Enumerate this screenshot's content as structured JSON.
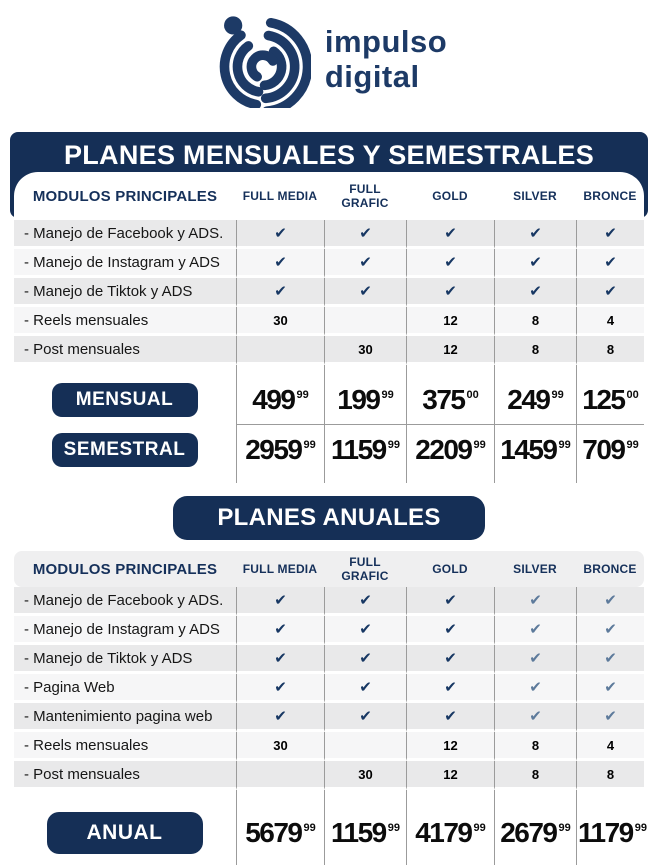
{
  "colors": {
    "navy": "#152f56",
    "check_dark": "#173763",
    "check_muted": "#5d7a9b",
    "grid_line": "#9b9b9b",
    "row_stripe": "#e9e9ea",
    "header_bar": "#efeff0"
  },
  "logo": {
    "name_line1": "impulso",
    "name_line2": "digital"
  },
  "monthly_table": {
    "title": "PLANES MENSUALES Y SEMESTRALES",
    "columns": [
      "MODULOS PRINCIPALES",
      "FULL MEDIA",
      "FULL GRAFIC",
      "GOLD",
      "SILVER",
      "BRONCE"
    ],
    "rows": [
      {
        "label": "- Manejo de Facebook y ADS.",
        "cells": [
          "✓",
          "✓",
          "✓",
          "✓",
          "✓"
        ]
      },
      {
        "label": "- Manejo de Instagram y ADS",
        "cells": [
          "✓",
          "✓",
          "✓",
          "✓",
          "✓"
        ]
      },
      {
        "label": "- Manejo de Tiktok y ADS",
        "cells": [
          "✓",
          "✓",
          "✓",
          "✓",
          "✓"
        ]
      },
      {
        "label": "- Reels mensuales",
        "cells": [
          "30",
          "",
          "12",
          "8",
          "4"
        ]
      },
      {
        "label": "- Post mensuales",
        "cells": [
          "",
          "30",
          "12",
          "8",
          "8"
        ]
      }
    ],
    "price_rows": [
      {
        "label": "MENSUAL",
        "prices": [
          [
            "499",
            "99"
          ],
          [
            "199",
            "99"
          ],
          [
            "375",
            "00"
          ],
          [
            "249",
            "99"
          ],
          [
            "125",
            "00"
          ]
        ]
      },
      {
        "label": "SEMESTRAL",
        "prices": [
          [
            "2959",
            "99"
          ],
          [
            "1159",
            "99"
          ],
          [
            "2209",
            "99"
          ],
          [
            "1459",
            "99"
          ],
          [
            "709",
            "99"
          ]
        ]
      }
    ]
  },
  "annual_table": {
    "title": "PLANES ANUALES",
    "columns": [
      "MODULOS PRINCIPALES",
      "FULL MEDIA",
      "FULL GRAFIC",
      "GOLD",
      "SILVER",
      "BRONCE"
    ],
    "muted_check_columns": [
      3,
      4
    ],
    "rows": [
      {
        "label": "- Manejo de Facebook y ADS.",
        "cells": [
          "✓",
          "✓",
          "✓",
          "✓",
          "✓"
        ]
      },
      {
        "label": "- Manejo de Instagram y ADS",
        "cells": [
          "✓",
          "✓",
          "✓",
          "✓",
          "✓"
        ]
      },
      {
        "label": "- Manejo de Tiktok y ADS",
        "cells": [
          "✓",
          "✓",
          "✓",
          "✓",
          "✓"
        ]
      },
      {
        "label": "- Pagina Web",
        "cells": [
          "✓",
          "✓",
          "✓",
          "✓",
          "✓"
        ]
      },
      {
        "label": "- Mantenimiento pagina web",
        "cells": [
          "✓",
          "✓",
          "✓",
          "✓",
          "✓"
        ]
      },
      {
        "label": "- Reels mensuales",
        "cells": [
          "30",
          "",
          "12",
          "8",
          "4"
        ]
      },
      {
        "label": "- Post mensuales",
        "cells": [
          "",
          "30",
          "12",
          "8",
          "8"
        ]
      }
    ],
    "price_rows": [
      {
        "label": "ANUAL",
        "prices": [
          [
            "5679",
            "99"
          ],
          [
            "1159",
            "99"
          ],
          [
            "4179",
            "99"
          ],
          [
            "2679",
            "99"
          ],
          [
            "1179",
            "99"
          ]
        ]
      }
    ]
  }
}
